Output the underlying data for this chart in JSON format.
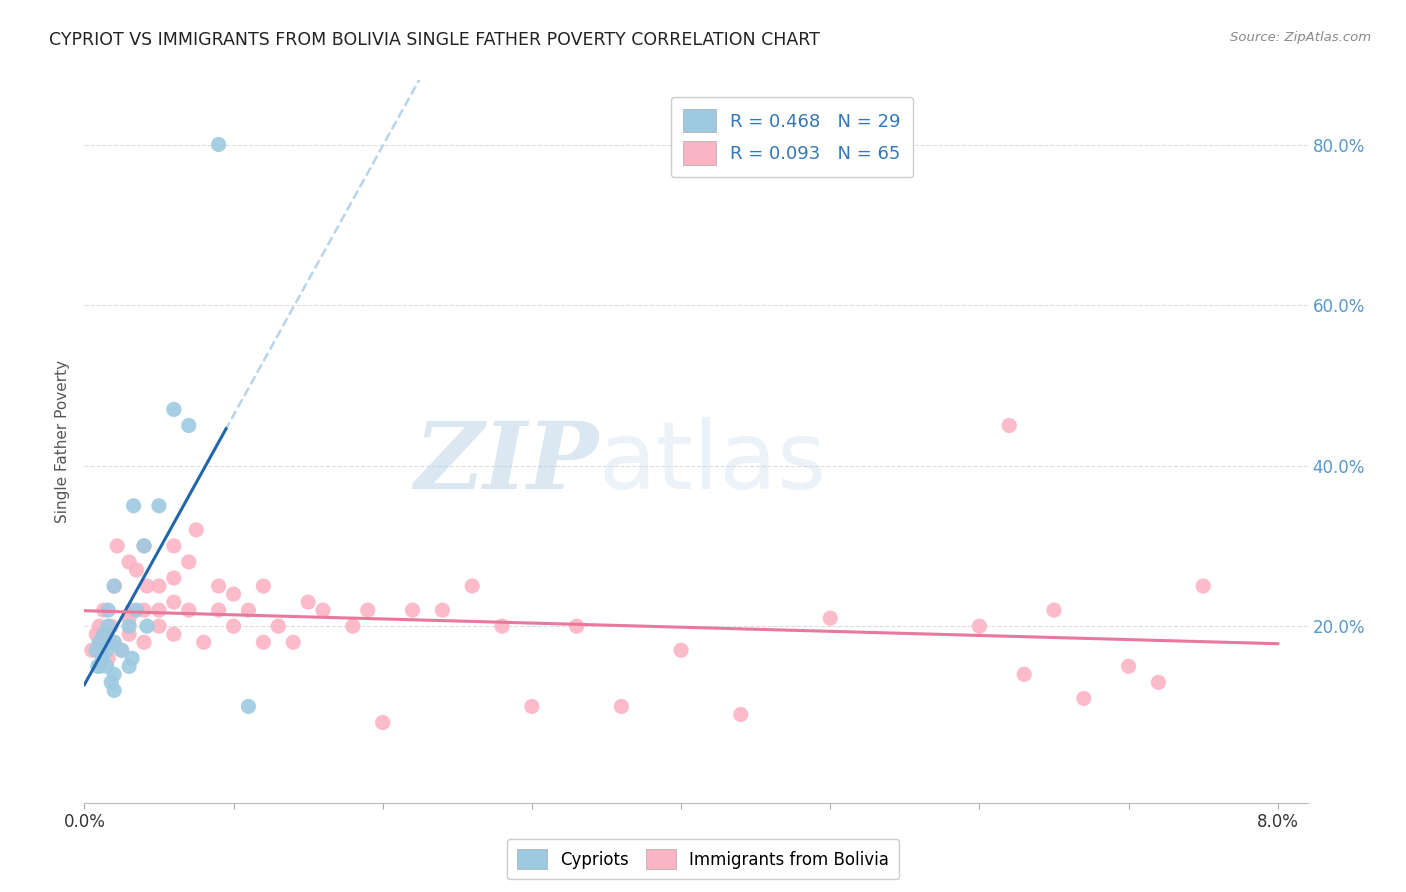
{
  "title": "CYPRIOT VS IMMIGRANTS FROM BOLIVIA SINGLE FATHER POVERTY CORRELATION CHART",
  "source": "Source: ZipAtlas.com",
  "ylabel": "Single Father Poverty",
  "right_yticks": [
    "80.0%",
    "60.0%",
    "40.0%",
    "20.0%"
  ],
  "right_ytick_vals": [
    0.8,
    0.6,
    0.4,
    0.2
  ],
  "cypriot_color": "#9ecae1",
  "bolivia_color": "#fbb4c3",
  "cypriot_line_color": "#2166ac",
  "bolivia_line_color": "#e8799a",
  "dashed_line_color": "#b8d4ea",
  "xlim": [
    0.0,
    0.082
  ],
  "ylim": [
    -0.02,
    0.88
  ],
  "cypriot_x": [
    0.0008,
    0.0009,
    0.001,
    0.001,
    0.0012,
    0.0013,
    0.0015,
    0.0015,
    0.0016,
    0.0016,
    0.0017,
    0.0018,
    0.002,
    0.002,
    0.002,
    0.002,
    0.0025,
    0.003,
    0.003,
    0.0032,
    0.0033,
    0.0035,
    0.004,
    0.0042,
    0.005,
    0.006,
    0.007,
    0.009,
    0.011
  ],
  "cypriot_y": [
    0.17,
    0.15,
    0.15,
    0.18,
    0.16,
    0.19,
    0.15,
    0.17,
    0.2,
    0.22,
    0.18,
    0.13,
    0.12,
    0.14,
    0.18,
    0.25,
    0.17,
    0.15,
    0.2,
    0.16,
    0.35,
    0.22,
    0.3,
    0.2,
    0.35,
    0.47,
    0.45,
    0.8,
    0.1
  ],
  "bolivia_x": [
    0.0005,
    0.0008,
    0.001,
    0.001,
    0.0012,
    0.0013,
    0.0015,
    0.0016,
    0.0018,
    0.002,
    0.002,
    0.0022,
    0.0025,
    0.003,
    0.003,
    0.003,
    0.0032,
    0.0035,
    0.004,
    0.004,
    0.004,
    0.0042,
    0.005,
    0.005,
    0.005,
    0.006,
    0.006,
    0.006,
    0.006,
    0.007,
    0.007,
    0.0075,
    0.008,
    0.009,
    0.009,
    0.01,
    0.01,
    0.011,
    0.012,
    0.012,
    0.013,
    0.014,
    0.015,
    0.016,
    0.018,
    0.019,
    0.02,
    0.022,
    0.024,
    0.026,
    0.028,
    0.03,
    0.033,
    0.036,
    0.04,
    0.044,
    0.05,
    0.06,
    0.063,
    0.067,
    0.062,
    0.065,
    0.07,
    0.072,
    0.075
  ],
  "bolivia_y": [
    0.17,
    0.19,
    0.18,
    0.2,
    0.17,
    0.22,
    0.19,
    0.16,
    0.2,
    0.18,
    0.25,
    0.3,
    0.17,
    0.19,
    0.21,
    0.28,
    0.22,
    0.27,
    0.18,
    0.22,
    0.3,
    0.25,
    0.2,
    0.25,
    0.22,
    0.19,
    0.23,
    0.26,
    0.3,
    0.22,
    0.28,
    0.32,
    0.18,
    0.22,
    0.25,
    0.2,
    0.24,
    0.22,
    0.18,
    0.25,
    0.2,
    0.18,
    0.23,
    0.22,
    0.2,
    0.22,
    0.08,
    0.22,
    0.22,
    0.25,
    0.2,
    0.1,
    0.2,
    0.1,
    0.17,
    0.09,
    0.21,
    0.2,
    0.14,
    0.11,
    0.45,
    0.22,
    0.15,
    0.13,
    0.25
  ],
  "background_color": "#ffffff",
  "grid_color": "#dddddd"
}
